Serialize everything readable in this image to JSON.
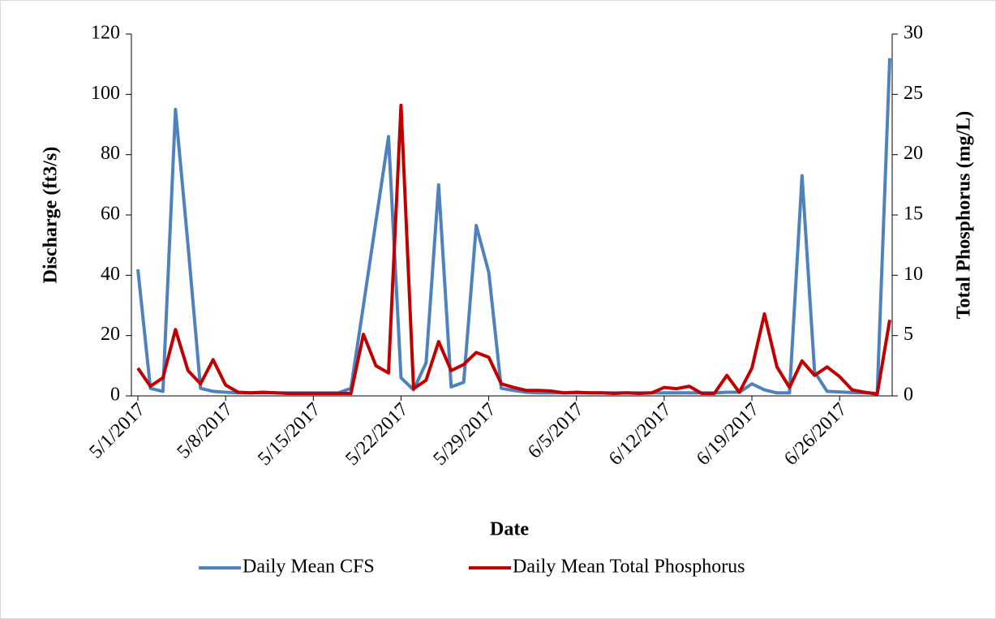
{
  "chart_data": {
    "type": "line",
    "x_label": "Date",
    "y_label": "Discharge (ft3/s)",
    "y2_label": "Total Phosphorus (mg/L)",
    "x": [
      "5/1/2017",
      "5/2/2017",
      "5/3/2017",
      "5/4/2017",
      "5/5/2017",
      "5/6/2017",
      "5/7/2017",
      "5/8/2017",
      "5/9/2017",
      "5/10/2017",
      "5/11/2017",
      "5/12/2017",
      "5/13/2017",
      "5/14/2017",
      "5/15/2017",
      "5/16/2017",
      "5/17/2017",
      "5/18/2017",
      "5/19/2017",
      "5/20/2017",
      "5/21/2017",
      "5/22/2017",
      "5/23/2017",
      "5/24/2017",
      "5/25/2017",
      "5/26/2017",
      "5/27/2017",
      "5/28/2017",
      "5/29/2017",
      "5/30/2017",
      "5/31/2017",
      "6/1/2017",
      "6/2/2017",
      "6/3/2017",
      "6/4/2017",
      "6/5/2017",
      "6/6/2017",
      "6/7/2017",
      "6/8/2017",
      "6/9/2017",
      "6/10/2017",
      "6/11/2017",
      "6/12/2017",
      "6/13/2017",
      "6/14/2017",
      "6/15/2017",
      "6/16/2017",
      "6/17/2017",
      "6/18/2017",
      "6/19/2017",
      "6/20/2017",
      "6/21/2017",
      "6/22/2017",
      "6/23/2017",
      "6/24/2017",
      "6/25/2017",
      "6/26/2017",
      "6/27/2017",
      "6/28/2017",
      "6/29/2017",
      "6/30/2017"
    ],
    "xlim": [
      "5/1/2017",
      "6/30/2017"
    ],
    "xticks": [
      "5/1/2017",
      "5/8/2017",
      "5/15/2017",
      "5/22/2017",
      "5/29/2017",
      "6/5/2017",
      "6/12/2017",
      "6/19/2017",
      "6/26/2017"
    ],
    "ylim": [
      0,
      120
    ],
    "yticks": [
      0,
      20,
      40,
      60,
      80,
      100,
      120
    ],
    "y2lim": [
      0,
      30
    ],
    "y2ticks": [
      0,
      5,
      10,
      15,
      20,
      25,
      30
    ],
    "legend": "bottom",
    "series": [
      {
        "name": "Daily Mean CFS",
        "color": "#4f81bd",
        "values": [
          42,
          2.5,
          1.5,
          95,
          50,
          2.5,
          1.5,
          1.2,
          1,
          1,
          1,
          1,
          1,
          1,
          1,
          1,
          1,
          2.5,
          30,
          58,
          86,
          6,
          2,
          11,
          70,
          3,
          4.5,
          56.5,
          41,
          2.5,
          1.8,
          1.2,
          1,
          1,
          1,
          1,
          1,
          1,
          1,
          1,
          1,
          1,
          1,
          1,
          1,
          1,
          1,
          1.2,
          1.2,
          4,
          2,
          1,
          1,
          73,
          8,
          1.5,
          1.3,
          1.1,
          1,
          0.8,
          112
        ]
      },
      {
        "name": "Daily Mean Total Phosphorus",
        "color": "#c00000",
        "axis": "y2",
        "values": [
          2.3,
          0.8,
          1.5,
          5.5,
          2.1,
          1.0,
          3.0,
          0.9,
          0.3,
          0.25,
          0.3,
          0.25,
          0.2,
          0.2,
          0.2,
          0.2,
          0.2,
          0.2,
          5.1,
          2.5,
          1.9,
          24.1,
          0.6,
          1.3,
          4.5,
          2.1,
          2.6,
          3.6,
          3.2,
          1.0,
          0.7,
          0.45,
          0.45,
          0.4,
          0.25,
          0.3,
          0.25,
          0.25,
          0.2,
          0.25,
          0.2,
          0.25,
          0.7,
          0.6,
          0.8,
          0.2,
          0.2,
          1.7,
          0.3,
          2.3,
          6.8,
          2.4,
          0.7,
          2.9,
          1.7,
          2.4,
          1.6,
          0.5,
          0.3,
          0.15,
          6.3
        ]
      }
    ]
  }
}
